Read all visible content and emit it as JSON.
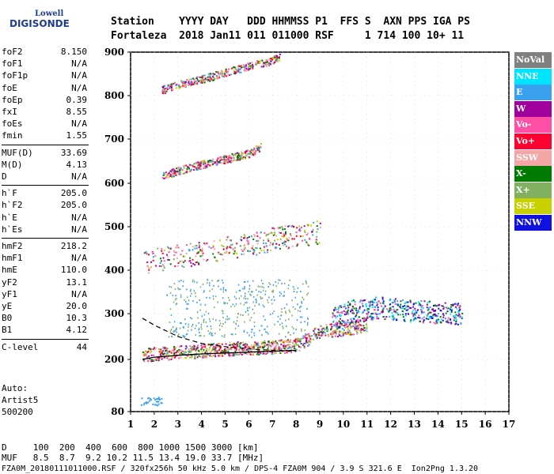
{
  "logo": {
    "line1": "Lowell",
    "line2": "DIGISONDE"
  },
  "header": {
    "row1": "Station    YYYY DAY   DDD HHMMSS P1  FFS S  AXN PPS IGA PS",
    "row2": "Fortaleza  2018 Jan11 011 011000 RSF     1 714 100 10+ 11"
  },
  "params": [
    {
      "label": "foF2",
      "value": "8.150"
    },
    {
      "label": "foF1",
      "value": "N/A"
    },
    {
      "label": "foF1p",
      "value": "N/A"
    },
    {
      "label": "foE",
      "value": "N/A"
    },
    {
      "label": "foEp",
      "value": "0.39"
    },
    {
      "label": "fxI",
      "value": "8.55"
    },
    {
      "label": "foEs",
      "value": "N/A"
    },
    {
      "label": "fmin",
      "value": "1.55"
    },
    {
      "label": "MUF(D)",
      "value": "33.69"
    },
    {
      "label": "M(D)",
      "value": "4.13"
    },
    {
      "label": "D",
      "value": "N/A"
    },
    {
      "label": "h`F",
      "value": "205.0"
    },
    {
      "label": "h`F2",
      "value": "205.0"
    },
    {
      "label": "h`E",
      "value": "N/A"
    },
    {
      "label": "h`Es",
      "value": "N/A"
    },
    {
      "label": "hmF2",
      "value": "218.2"
    },
    {
      "label": "hmF1",
      "value": "N/A"
    },
    {
      "label": "hmE",
      "value": "110.0"
    },
    {
      "label": "yF2",
      "value": "13.1"
    },
    {
      "label": "yF1",
      "value": "N/A"
    },
    {
      "label": "yE",
      "value": "20.0"
    },
    {
      "label": "B0",
      "value": "10.3"
    },
    {
      "label": "B1",
      "value": "4.12"
    },
    {
      "label": "C-level",
      "value": "44"
    }
  ],
  "auto": {
    "line1": "Auto:",
    "line2": "Artist5",
    "line3": "500200"
  },
  "legend": [
    {
      "label": "NoVal",
      "color": "#808080",
      "text_color": "#ffffff"
    },
    {
      "label": "NNE",
      "color": "#00e5ff",
      "text_color": "#ffffff"
    },
    {
      "label": "E",
      "color": "#3aa0f0",
      "text_color": "#ffffff"
    },
    {
      "label": "W",
      "color": "#a0009c",
      "text_color": "#ffffff"
    },
    {
      "label": "Vo-",
      "color": "#ff4fa6",
      "text_color": "#ffffff"
    },
    {
      "label": "Vo+",
      "color": "#ff0030",
      "text_color": "#ffffff"
    },
    {
      "label": "SSW",
      "color": "#f4a6a6",
      "text_color": "#ffffff"
    },
    {
      "label": "X-",
      "color": "#007a00",
      "text_color": "#ffffff"
    },
    {
      "label": "X+",
      "color": "#80b060",
      "text_color": "#ffffff"
    },
    {
      "label": "SSE",
      "color": "#c8d000",
      "text_color": "#ffffff"
    },
    {
      "label": "NNW",
      "color": "#1010e0",
      "text_color": "#ffffff"
    }
  ],
  "bottom": {
    "line1": "D     100  200  400  600  800 1000 1500 3000 [km]",
    "line2": "MUF   8.5  8.7  9.2 10.2 11.5 13.4 19.0 33.7 [MHz]",
    "line3": "FZA0M_20180111011000.RSF / 320fx256h 50 kHz 5.0 km / DPS-4 FZA0M 904 / 3.9 S 321.6 E  Ion2Png 1.3.20"
  },
  "chart_data": {
    "type": "scatter",
    "title": "",
    "xlabel": "",
    "ylabel": "",
    "xlim": [
      1,
      17
    ],
    "ylim": [
      80,
      900
    ],
    "x_ticks": [
      "1",
      "2",
      "3",
      "4",
      "5",
      "6",
      "7",
      "8",
      "9",
      "10",
      "11",
      "12",
      "13",
      "14",
      "15",
      "16",
      "17"
    ],
    "y_ticks": [
      "80",
      "200",
      "300",
      "400",
      "500",
      "600",
      "700",
      "800",
      "900"
    ],
    "y_tick_values": [
      80,
      200,
      300,
      400,
      500,
      600,
      700,
      800,
      900
    ],
    "traces": [
      {
        "name": "O-trace",
        "points": [
          [
            1.5,
            205
          ],
          [
            2,
            207
          ],
          [
            3,
            210
          ],
          [
            4,
            214
          ],
          [
            5,
            218
          ],
          [
            6,
            220
          ],
          [
            7,
            222
          ],
          [
            8,
            225
          ],
          [
            8.5,
            240
          ],
          [
            9,
            255
          ],
          [
            10,
            262
          ],
          [
            11,
            270
          ]
        ]
      },
      {
        "name": "F-2hop",
        "points": [
          [
            1.5,
            410
          ],
          [
            3,
            422
          ],
          [
            4,
            430
          ],
          [
            5,
            440
          ],
          [
            6,
            450
          ],
          [
            7,
            462
          ],
          [
            8,
            470
          ],
          [
            9,
            478
          ]
        ]
      },
      {
        "name": "F-3hop",
        "points": [
          [
            2.3,
            615
          ],
          [
            3,
            625
          ],
          [
            4,
            640
          ],
          [
            5,
            652
          ],
          [
            6,
            665
          ],
          [
            6.5,
            680
          ]
        ]
      },
      {
        "name": "F-4hop",
        "points": [
          [
            2.3,
            810
          ],
          [
            3,
            822
          ],
          [
            4,
            835
          ],
          [
            5,
            850
          ],
          [
            6,
            865
          ],
          [
            7,
            878
          ],
          [
            7.3,
            887
          ]
        ]
      },
      {
        "name": "X-trace",
        "points": [
          [
            9.5,
            280
          ],
          [
            10.5,
            300
          ],
          [
            11.5,
            305
          ],
          [
            12.5,
            300
          ],
          [
            13.5,
            295
          ],
          [
            14.5,
            293
          ],
          [
            15,
            292
          ]
        ]
      }
    ],
    "profile_curve": [
      [
        1.5,
        200
      ],
      [
        2,
        205
      ],
      [
        3,
        209
      ],
      [
        4,
        212
      ],
      [
        5,
        214
      ],
      [
        6,
        216
      ],
      [
        7,
        218
      ],
      [
        8,
        220
      ]
    ],
    "dashed_curve": [
      [
        1.5,
        290
      ],
      [
        2,
        275
      ],
      [
        3,
        250
      ],
      [
        4,
        235
      ],
      [
        5,
        228
      ],
      [
        6,
        223
      ],
      [
        7,
        220
      ],
      [
        8,
        218
      ]
    ]
  }
}
